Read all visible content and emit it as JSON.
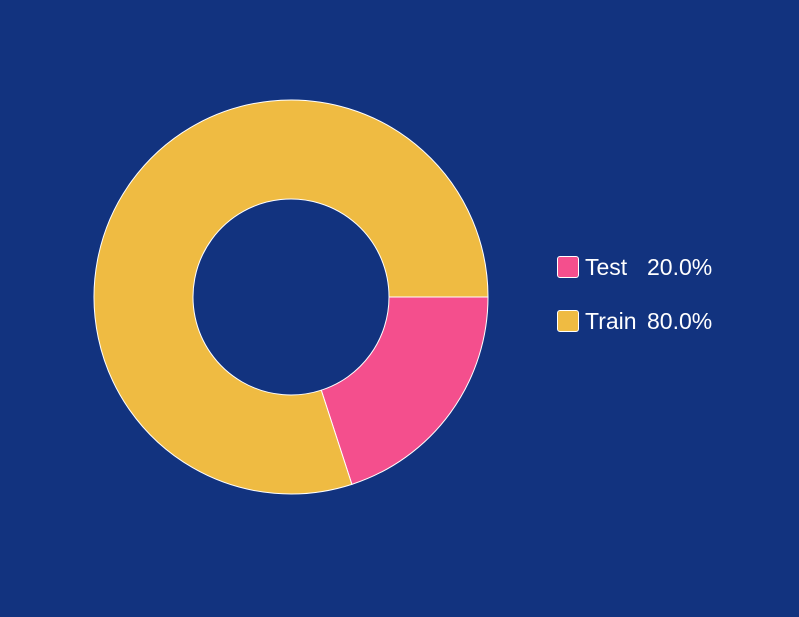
{
  "background_color": "#12337f",
  "chart_data": {
    "type": "pie",
    "variant": "donut",
    "categories": [
      "Test",
      "Train"
    ],
    "values": [
      20.0,
      80.0
    ],
    "value_labels": [
      "20.0%",
      "80.0%"
    ],
    "colors": [
      "#f44f8d",
      "#efbb42"
    ],
    "legend_placement": "right",
    "title": ""
  }
}
